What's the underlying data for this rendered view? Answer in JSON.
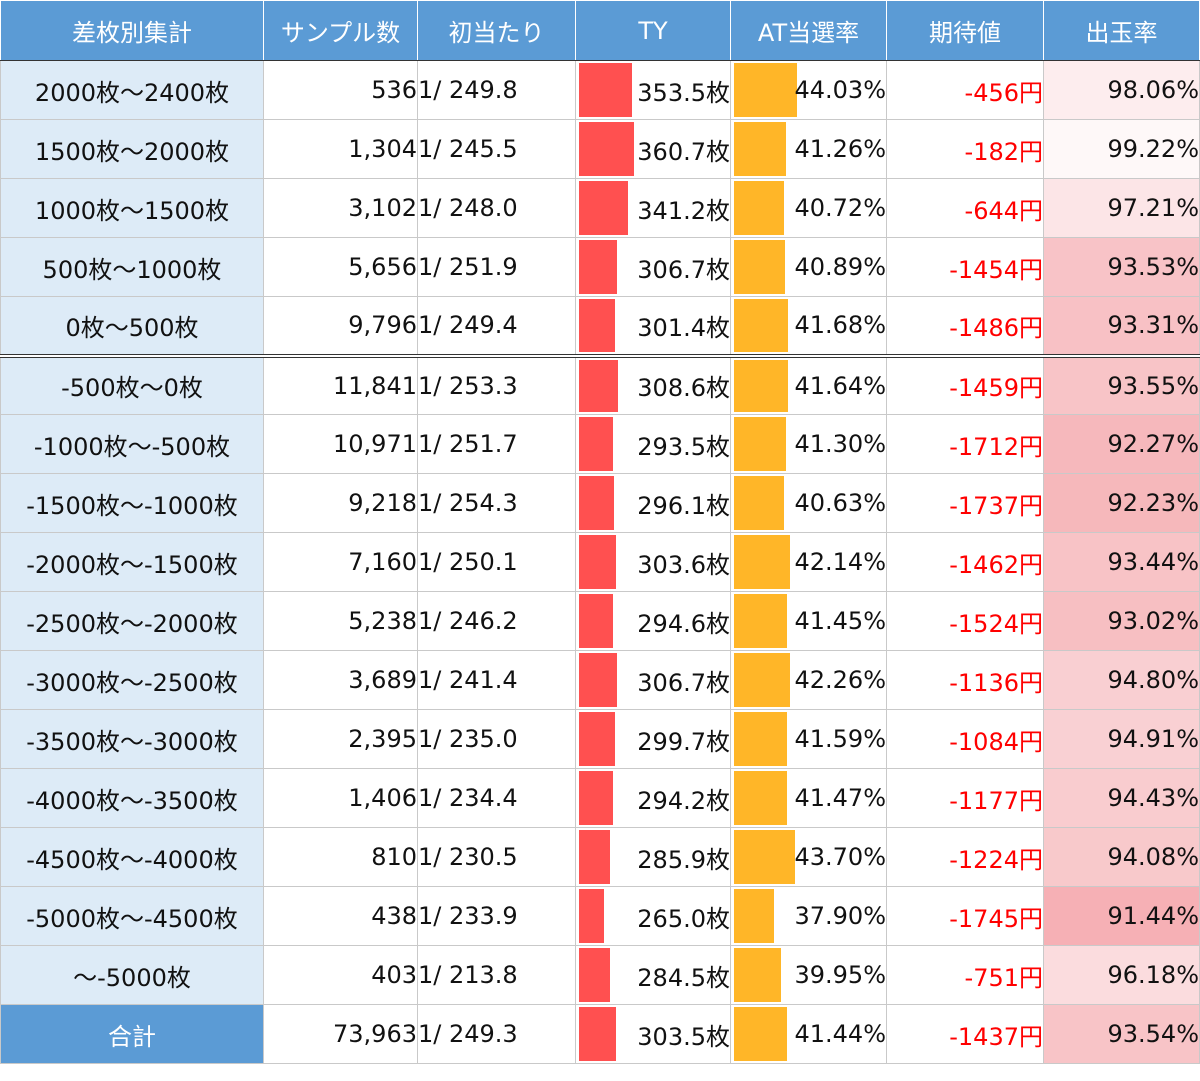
{
  "table": {
    "headers": [
      "差枚別集計",
      "サンプル数",
      "初当たり",
      "TY",
      "AT当選率",
      "期待値",
      "出玉率"
    ],
    "colors": {
      "header_bg": "#5b9bd5",
      "label_bg": "#ddebf7",
      "ty_bar": "#ff5050",
      "at_bar": "#ffb628",
      "ev_text": "#ff0000",
      "payout_heat": "#f4a3a8"
    },
    "rows": [
      {
        "label": "2000枚〜2400枚",
        "samples": "536",
        "first_hit": "1/ 249.8",
        "ty": "353.5枚",
        "ty_value": 353.5,
        "at_rate": "44.03%",
        "at_value": 44.03,
        "ev": "-456円",
        "payout": "98.06%",
        "payout_value": 98.06
      },
      {
        "label": "1500枚〜2000枚",
        "samples": "1,304",
        "first_hit": "1/ 245.5",
        "ty": "360.7枚",
        "ty_value": 360.7,
        "at_rate": "41.26%",
        "at_value": 41.26,
        "ev": "-182円",
        "payout": "99.22%",
        "payout_value": 99.22
      },
      {
        "label": "1000枚〜1500枚",
        "samples": "3,102",
        "first_hit": "1/ 248.0",
        "ty": "341.2枚",
        "ty_value": 341.2,
        "at_rate": "40.72%",
        "at_value": 40.72,
        "ev": "-644円",
        "payout": "97.21%",
        "payout_value": 97.21
      },
      {
        "label": "500枚〜1000枚",
        "samples": "5,656",
        "first_hit": "1/ 251.9",
        "ty": "306.7枚",
        "ty_value": 306.7,
        "at_rate": "40.89%",
        "at_value": 40.89,
        "ev": "-1454円",
        "payout": "93.53%",
        "payout_value": 93.53
      },
      {
        "label": "0枚〜500枚",
        "samples": "9,796",
        "first_hit": "1/ 249.4",
        "ty": "301.4枚",
        "ty_value": 301.4,
        "at_rate": "41.68%",
        "at_value": 41.68,
        "ev": "-1486円",
        "payout": "93.31%",
        "payout_value": 93.31
      },
      {
        "label": "-500枚〜0枚",
        "samples": "11,841",
        "first_hit": "1/ 253.3",
        "ty": "308.6枚",
        "ty_value": 308.6,
        "at_rate": "41.64%",
        "at_value": 41.64,
        "ev": "-1459円",
        "payout": "93.55%",
        "payout_value": 93.55
      },
      {
        "label": "-1000枚〜-500枚",
        "samples": "10,971",
        "first_hit": "1/ 251.7",
        "ty": "293.5枚",
        "ty_value": 293.5,
        "at_rate": "41.30%",
        "at_value": 41.3,
        "ev": "-1712円",
        "payout": "92.27%",
        "payout_value": 92.27
      },
      {
        "label": "-1500枚〜-1000枚",
        "samples": "9,218",
        "first_hit": "1/ 254.3",
        "ty": "296.1枚",
        "ty_value": 296.1,
        "at_rate": "40.63%",
        "at_value": 40.63,
        "ev": "-1737円",
        "payout": "92.23%",
        "payout_value": 92.23
      },
      {
        "label": "-2000枚〜-1500枚",
        "samples": "7,160",
        "first_hit": "1/ 250.1",
        "ty": "303.6枚",
        "ty_value": 303.6,
        "at_rate": "42.14%",
        "at_value": 42.14,
        "ev": "-1462円",
        "payout": "93.44%",
        "payout_value": 93.44
      },
      {
        "label": "-2500枚〜-2000枚",
        "samples": "5,238",
        "first_hit": "1/ 246.2",
        "ty": "294.6枚",
        "ty_value": 294.6,
        "at_rate": "41.45%",
        "at_value": 41.45,
        "ev": "-1524円",
        "payout": "93.02%",
        "payout_value": 93.02
      },
      {
        "label": "-3000枚〜-2500枚",
        "samples": "3,689",
        "first_hit": "1/ 241.4",
        "ty": "306.7枚",
        "ty_value": 306.7,
        "at_rate": "42.26%",
        "at_value": 42.26,
        "ev": "-1136円",
        "payout": "94.80%",
        "payout_value": 94.8
      },
      {
        "label": "-3500枚〜-3000枚",
        "samples": "2,395",
        "first_hit": "1/ 235.0",
        "ty": "299.7枚",
        "ty_value": 299.7,
        "at_rate": "41.59%",
        "at_value": 41.59,
        "ev": "-1084円",
        "payout": "94.91%",
        "payout_value": 94.91
      },
      {
        "label": "-4000枚〜-3500枚",
        "samples": "1,406",
        "first_hit": "1/ 234.4",
        "ty": "294.2枚",
        "ty_value": 294.2,
        "at_rate": "41.47%",
        "at_value": 41.47,
        "ev": "-1177円",
        "payout": "94.43%",
        "payout_value": 94.43
      },
      {
        "label": "-4500枚〜-4000枚",
        "samples": "810",
        "first_hit": "1/ 230.5",
        "ty": "285.9枚",
        "ty_value": 285.9,
        "at_rate": "43.70%",
        "at_value": 43.7,
        "ev": "-1224円",
        "payout": "94.08%",
        "payout_value": 94.08
      },
      {
        "label": "-5000枚〜-4500枚",
        "samples": "438",
        "first_hit": "1/ 233.9",
        "ty": "265.0枚",
        "ty_value": 265.0,
        "at_rate": "37.90%",
        "at_value": 37.9,
        "ev": "-1745円",
        "payout": "91.44%",
        "payout_value": 91.44
      },
      {
        "label": "〜-5000枚",
        "samples": "403",
        "first_hit": "1/ 213.8",
        "ty": "284.5枚",
        "ty_value": 284.5,
        "at_rate": "39.95%",
        "at_value": 39.95,
        "ev": "-751円",
        "payout": "96.18%",
        "payout_value": 96.18
      }
    ],
    "total": {
      "label": "合計",
      "samples": "73,963",
      "first_hit": "1/ 249.3",
      "ty": "303.5枚",
      "ty_value": 303.5,
      "at_rate": "41.44%",
      "at_value": 41.44,
      "ev": "-1437円",
      "payout": "93.54%",
      "payout_value": 93.54
    }
  }
}
